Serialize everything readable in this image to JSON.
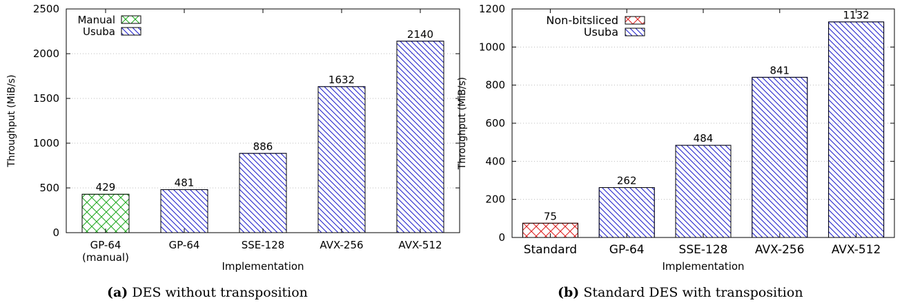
{
  "chart_data": [
    {
      "type": "bar",
      "categories": [
        "GP-64\n(manual)",
        "GP-64",
        "SSE-128",
        "AVX-256",
        "AVX-512"
      ],
      "values": [
        429,
        481,
        886,
        1632,
        2140
      ],
      "value_labels": [
        "429",
        "481",
        "886",
        "1632",
        "2140"
      ],
      "series_of_bar": [
        0,
        1,
        1,
        1,
        1
      ],
      "series": [
        {
          "name": "Manual",
          "color": "#22aa22",
          "pattern": "crosshatch"
        },
        {
          "name": "Usuba",
          "color": "#2222cc",
          "pattern": "diagonal"
        }
      ],
      "xlabel": "Implementation",
      "ylabel": "Throughput (MiB/s)",
      "ylim": [
        0,
        2500
      ],
      "yticks": [
        0,
        500,
        1000,
        1500,
        2000,
        2500
      ],
      "grid": true,
      "legend_position": "top-left"
    },
    {
      "type": "bar",
      "categories": [
        "Standard",
        "GP-64",
        "SSE-128",
        "AVX-256",
        "AVX-512"
      ],
      "values": [
        75,
        262,
        484,
        841,
        1132
      ],
      "value_labels": [
        "75",
        "262",
        "484",
        "841",
        "1132"
      ],
      "series_of_bar": [
        0,
        1,
        1,
        1,
        1
      ],
      "series": [
        {
          "name": "Non-bitsliced",
          "color": "#dd2222",
          "pattern": "crosshatch"
        },
        {
          "name": "Usuba",
          "color": "#2222cc",
          "pattern": "diagonal"
        }
      ],
      "xlabel": "Implementation",
      "ylabel": "Throughput (MiB/s)",
      "ylim": [
        0,
        1200
      ],
      "yticks": [
        0,
        200,
        400,
        600,
        800,
        1000,
        1200
      ],
      "grid": true,
      "legend_position": "top-left"
    }
  ],
  "captions": {
    "a_tag": "(a)",
    "a_text": "DES without transposition",
    "b_tag": "(b)",
    "b_text": "Standard DES with transposition"
  }
}
